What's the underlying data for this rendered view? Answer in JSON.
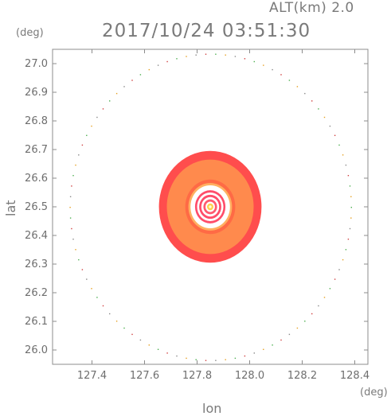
{
  "header": {
    "altitude": "ALT(km) 2.0",
    "datetime": "2017/10/24 03:51:30"
  },
  "chart_data": {
    "type": "heatmap",
    "title": "2017/10/24 03:51:30",
    "xlabel": "lon",
    "ylabel": "lat",
    "x_unit": "(deg)",
    "y_unit": "(deg)",
    "xlim": [
      127.25,
      128.45
    ],
    "ylim": [
      25.95,
      27.05
    ],
    "x_ticks": [
      127.4,
      127.6,
      127.8,
      128.0,
      128.2,
      128.4
    ],
    "x_tick_labels": [
      "127.4",
      "127.6",
      "127.8",
      "128.0",
      "128.2",
      "128.4"
    ],
    "y_ticks": [
      26.0,
      26.1,
      26.2,
      26.3,
      26.4,
      26.5,
      26.6,
      26.7,
      26.8,
      26.9,
      27.0
    ],
    "y_tick_labels": [
      "26.0",
      "26.1",
      "26.2",
      "26.3",
      "26.4",
      "26.5",
      "26.6",
      "26.7",
      "26.8",
      "26.9",
      "27.0"
    ],
    "center": {
      "lon": 127.85,
      "lat": 26.5
    },
    "rings": [
      {
        "radius_deg": 0.195,
        "color": "#ff4d4d"
      },
      {
        "radius_deg": 0.165,
        "color": "#ff8a4d"
      },
      {
        "radius_deg": 0.095,
        "color": "#ff6a45"
      },
      {
        "radius_deg": 0.083,
        "color": "#ffb060"
      },
      {
        "radius_deg": 0.075,
        "color": "#ffffff"
      },
      {
        "radius_deg": 0.058,
        "color": "#ff4d6a"
      },
      {
        "radius_deg": 0.05,
        "color": "#ffffff"
      },
      {
        "radius_deg": 0.042,
        "color": "#ff4d6a"
      },
      {
        "radius_deg": 0.034,
        "color": "#ffffff"
      },
      {
        "radius_deg": 0.026,
        "color": "#ff5a70"
      },
      {
        "radius_deg": 0.018,
        "color": "#ffffff"
      },
      {
        "radius_deg": 0.012,
        "color": "#ffd24d"
      },
      {
        "radius_deg": 0.005,
        "color": "#fffde0"
      }
    ],
    "range_circle": {
      "radius_deg": 0.535,
      "colors": [
        "#4caf50",
        "#e6a020",
        "#888888",
        "#d04040"
      ]
    }
  }
}
